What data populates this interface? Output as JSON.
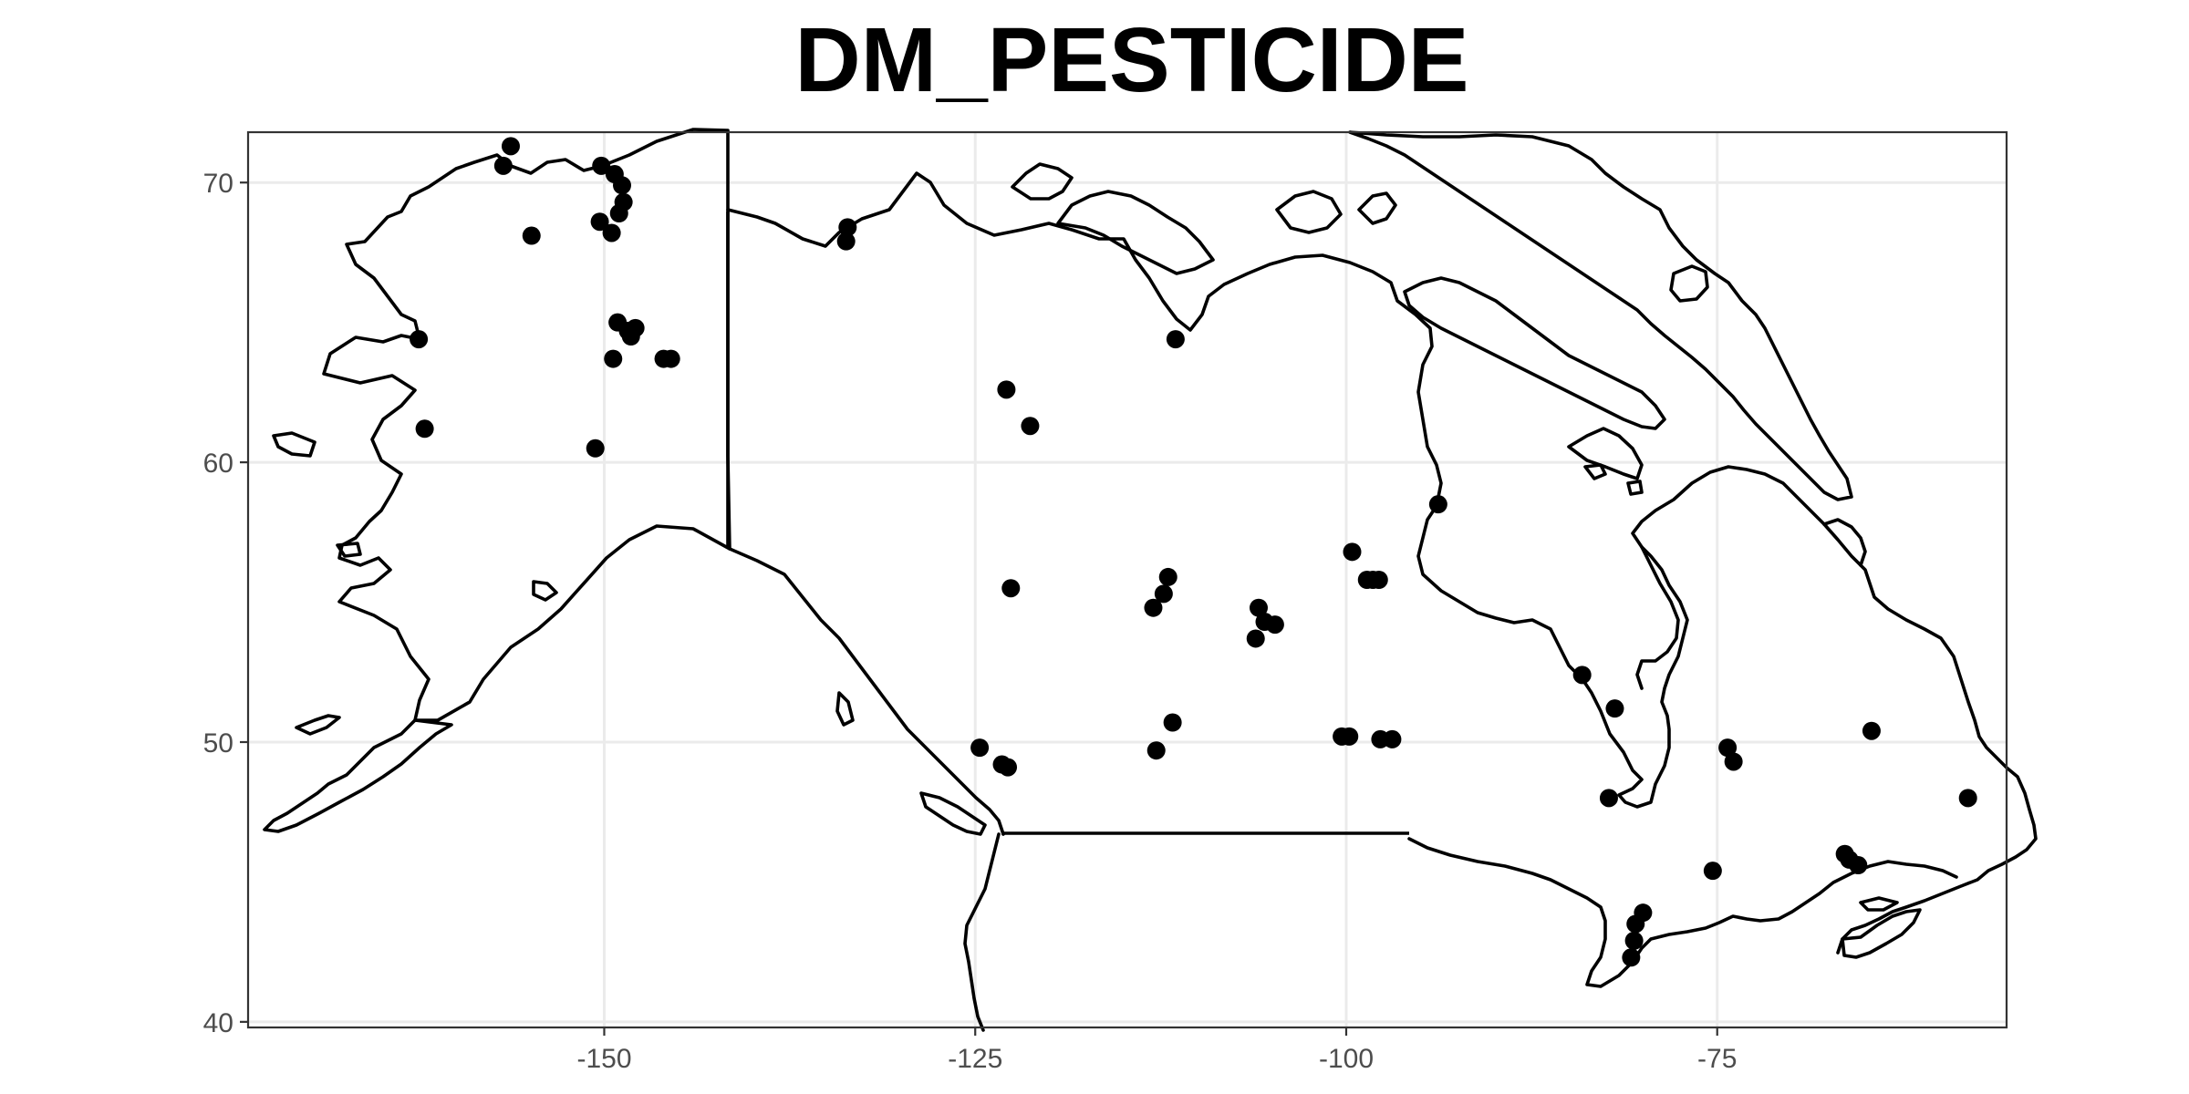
{
  "chart_data": {
    "type": "scatter",
    "title": "DM_PESTICIDE",
    "xlabel": "",
    "ylabel": "",
    "xlim": [
      -174,
      -55.5
    ],
    "ylim": [
      39.8,
      71.8
    ],
    "grid": true,
    "x_ticks": [
      {
        "value": -150,
        "label": "-150"
      },
      {
        "value": -125,
        "label": "-125"
      },
      {
        "value": -100,
        "label": "-100"
      },
      {
        "value": -75,
        "label": "-75"
      }
    ],
    "y_ticks": [
      {
        "value": 40,
        "label": "40"
      },
      {
        "value": 50,
        "label": "50"
      },
      {
        "value": 60,
        "label": "60"
      },
      {
        "value": 70,
        "label": "70"
      }
    ],
    "points": [
      {
        "x": -156.3,
        "y": 71.3
      },
      {
        "x": -156.8,
        "y": 70.6
      },
      {
        "x": -150.2,
        "y": 70.6
      },
      {
        "x": -149.3,
        "y": 70.3
      },
      {
        "x": -148.8,
        "y": 69.9
      },
      {
        "x": -148.7,
        "y": 69.3
      },
      {
        "x": -149.0,
        "y": 68.9
      },
      {
        "x": -150.3,
        "y": 68.6
      },
      {
        "x": -149.5,
        "y": 68.2
      },
      {
        "x": -154.9,
        "y": 68.1
      },
      {
        "x": -149.1,
        "y": 65.0
      },
      {
        "x": -148.4,
        "y": 64.7
      },
      {
        "x": -147.9,
        "y": 64.8
      },
      {
        "x": -148.2,
        "y": 64.5
      },
      {
        "x": -149.4,
        "y": 63.7
      },
      {
        "x": -146.0,
        "y": 63.7
      },
      {
        "x": -145.5,
        "y": 63.7
      },
      {
        "x": -162.5,
        "y": 64.4
      },
      {
        "x": -162.1,
        "y": 61.2
      },
      {
        "x": -150.6,
        "y": 60.5
      },
      {
        "x": -133.6,
        "y": 68.4
      },
      {
        "x": -133.7,
        "y": 67.9
      },
      {
        "x": -111.5,
        "y": 64.4
      },
      {
        "x": -122.9,
        "y": 62.6
      },
      {
        "x": -121.3,
        "y": 61.3
      },
      {
        "x": -122.6,
        "y": 55.5
      },
      {
        "x": -112.0,
        "y": 55.9
      },
      {
        "x": -112.3,
        "y": 55.3
      },
      {
        "x": -113.0,
        "y": 54.8
      },
      {
        "x": -105.9,
        "y": 54.8
      },
      {
        "x": -105.5,
        "y": 54.3
      },
      {
        "x": -104.8,
        "y": 54.2
      },
      {
        "x": -106.1,
        "y": 53.7
      },
      {
        "x": -99.6,
        "y": 56.8
      },
      {
        "x": -98.6,
        "y": 55.8
      },
      {
        "x": -98.2,
        "y": 55.8
      },
      {
        "x": -97.8,
        "y": 55.8
      },
      {
        "x": -93.8,
        "y": 58.5
      },
      {
        "x": -111.7,
        "y": 50.7
      },
      {
        "x": -112.8,
        "y": 49.7
      },
      {
        "x": -124.7,
        "y": 49.8
      },
      {
        "x": -123.2,
        "y": 49.2
      },
      {
        "x": -122.8,
        "y": 49.1
      },
      {
        "x": -100.3,
        "y": 50.2
      },
      {
        "x": -99.8,
        "y": 50.2
      },
      {
        "x": -97.7,
        "y": 50.1
      },
      {
        "x": -96.9,
        "y": 50.1
      },
      {
        "x": -84.1,
        "y": 52.4
      },
      {
        "x": -81.9,
        "y": 51.2
      },
      {
        "x": -82.3,
        "y": 48.0
      },
      {
        "x": -74.3,
        "y": 49.8
      },
      {
        "x": -73.9,
        "y": 49.3
      },
      {
        "x": -64.6,
        "y": 50.4
      },
      {
        "x": -58.1,
        "y": 48.0
      },
      {
        "x": -75.3,
        "y": 45.4
      },
      {
        "x": -66.4,
        "y": 46.0
      },
      {
        "x": -66.1,
        "y": 45.8
      },
      {
        "x": -65.5,
        "y": 45.6
      },
      {
        "x": -80.0,
        "y": 43.9
      },
      {
        "x": -80.5,
        "y": 43.5
      },
      {
        "x": -80.6,
        "y": 42.9
      },
      {
        "x": -80.8,
        "y": 42.3
      }
    ]
  },
  "colors": {
    "points": "#000000",
    "outline": "#000000",
    "grid": "#ebebeb",
    "tick_text": "#4d4d4d",
    "background": "#ffffff"
  }
}
